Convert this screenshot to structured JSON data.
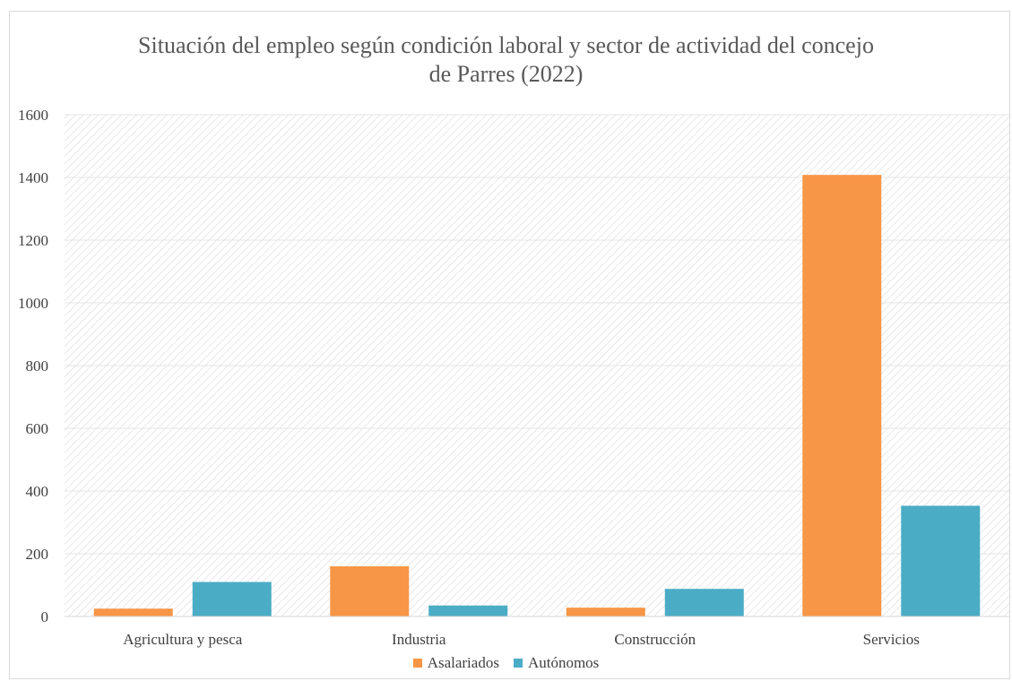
{
  "chart_data": {
    "type": "bar",
    "title_lines": [
      "Situación del empleo según condición laboral y sector de actividad del concejo",
      "de Parres (2022)"
    ],
    "categories": [
      "Agricultura y pesca",
      "Industria",
      "Construcción",
      "Servicios"
    ],
    "series": [
      {
        "name": "Asalariados",
        "color": "#f79646",
        "values": [
          25,
          160,
          28,
          1408
        ]
      },
      {
        "name": "Autónomos",
        "color": "#4bacc6",
        "values": [
          110,
          35,
          88,
          353
        ]
      }
    ],
    "ylim": [
      0,
      1600
    ],
    "yticks": [
      0,
      200,
      400,
      600,
      800,
      1000,
      1200,
      1400,
      1600
    ],
    "grid": true,
    "plot_background": "diagonal-hatch",
    "legend": "bottom"
  }
}
